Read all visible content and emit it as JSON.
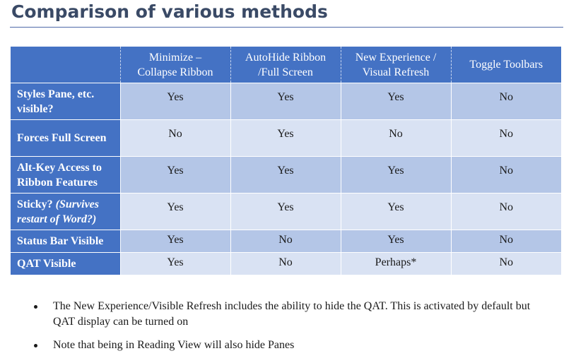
{
  "title": "Comparison of various methods",
  "table": {
    "headers": [
      "",
      "Minimize –\nCollapse Ribbon",
      "AutoHide Ribbon\n/Full Screen",
      "New Experience /\nVisual Refresh",
      "Toggle Toolbars"
    ],
    "rows": [
      {
        "label": "Styles Pane, etc. visible?",
        "label_italic": "",
        "values": [
          "Yes",
          "Yes",
          "Yes",
          "No"
        ]
      },
      {
        "label": "Forces Full Screen",
        "label_italic": "",
        "values": [
          "No",
          "Yes",
          "No",
          "No"
        ]
      },
      {
        "label": "Alt-Key Access to Ribbon Features",
        "label_italic": "",
        "values": [
          "Yes",
          "Yes",
          "Yes",
          "No"
        ]
      },
      {
        "label": "Sticky? ",
        "label_italic": "(Survives restart of Word?)",
        "values": [
          "Yes",
          "Yes",
          "Yes",
          "No"
        ]
      },
      {
        "label": "Status Bar Visible",
        "label_italic": "",
        "values": [
          "Yes",
          "No",
          "Yes",
          "No"
        ]
      },
      {
        "label": "QAT Visible",
        "label_italic": "",
        "values": [
          "Yes",
          "No",
          "Perhaps*",
          "No"
        ]
      }
    ]
  },
  "notes": [
    "The New Experience/Visible Refresh includes the ability to hide the QAT. This is activated by default but QAT display can be turned on",
    "Note that being in Reading View will also hide Panes"
  ],
  "colors": {
    "header_blue": "#4472c4",
    "row_dark": "#b4c6e7",
    "row_light": "#d9e2f3",
    "title_text": "#3a4a66",
    "rule": "#4f6aa8"
  }
}
